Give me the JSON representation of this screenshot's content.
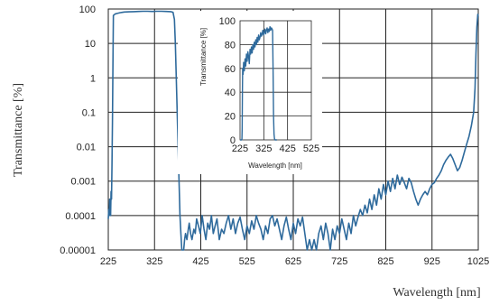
{
  "chart_data": [
    {
      "type": "line",
      "xlabel": "Wavelength [nm]",
      "ylabel": "Transmittance [%]",
      "xlim": [
        225,
        1025
      ],
      "ylim": [
        1e-05,
        100
      ],
      "yscale": "log",
      "grid": true,
      "x_ticks": [
        "225",
        "325",
        "425",
        "525",
        "625",
        "725",
        "825",
        "925",
        "1025"
      ],
      "y_ticks": [
        "100",
        "10",
        "1",
        "0.1",
        "0.01",
        "0.001",
        "0.0001",
        "0.00001"
      ],
      "color": "#2e6a9c",
      "series": [
        {
          "x": [
            225,
            226,
            227,
            228,
            229,
            230,
            231,
            232,
            233,
            234,
            235,
            236,
            240,
            245,
            250,
            255,
            260,
            270,
            280,
            290,
            300,
            310,
            320,
            330,
            340,
            350,
            360,
            365,
            368,
            370,
            372,
            374,
            376,
            378,
            380,
            382,
            384,
            386,
            388,
            390,
            392,
            395,
            398,
            400,
            403,
            406,
            410,
            413,
            416,
            420,
            424,
            428,
            432,
            436,
            440,
            444,
            448,
            452,
            456,
            460,
            465,
            470,
            475,
            480,
            485,
            490,
            495,
            500,
            505,
            510,
            515,
            520,
            525,
            530,
            535,
            540,
            545,
            550,
            555,
            560,
            565,
            570,
            575,
            580,
            585,
            590,
            595,
            600,
            605,
            610,
            615,
            620,
            625,
            630,
            635,
            640,
            645,
            650,
            655,
            660,
            665,
            670,
            675,
            680,
            685,
            690,
            695,
            700,
            705,
            710,
            715,
            720,
            725,
            730,
            735,
            740,
            745,
            750,
            755,
            760,
            765,
            770,
            775,
            780,
            785,
            790,
            795,
            800,
            805,
            810,
            815,
            820,
            825,
            830,
            835,
            840,
            845,
            850,
            855,
            860,
            865,
            870,
            875,
            880,
            885,
            890,
            895,
            900,
            905,
            910,
            915,
            920,
            925,
            930,
            935,
            940,
            945,
            950,
            955,
            960,
            965,
            970,
            975,
            980,
            985,
            990,
            995,
            1000,
            1005,
            1010,
            1015,
            1018,
            1020,
            1022,
            1024,
            1025
          ],
          "y": [
            8e-05,
            0.00015,
            0.0001,
            0.0003,
            0.0002,
            0.0001,
            0.0005,
            0.0003,
            0.003,
            0.05,
            2,
            65,
            72,
            75,
            78,
            80,
            82,
            83,
            84,
            85,
            86,
            86,
            85,
            86,
            86,
            85,
            84,
            80,
            50,
            10,
            1,
            0.1,
            0.01,
            0.001,
            0.0001,
            3e-05,
            1e-05,
            1e-05,
            1e-05,
            2e-05,
            3e-05,
            2e-05,
            4e-05,
            6e-05,
            3e-05,
            2e-05,
            4e-05,
            3e-05,
            8e-05,
            5e-05,
            3e-05,
            0.0001,
            4e-05,
            2e-05,
            6e-05,
            4e-05,
            0.0001,
            3e-05,
            5e-05,
            8e-05,
            2e-05,
            4e-05,
            3e-05,
            6e-05,
            0.0001,
            4e-05,
            8e-05,
            3e-05,
            6e-05,
            9e-05,
            4e-05,
            2e-05,
            5e-05,
            3e-05,
            7e-05,
            4e-05,
            0.0001,
            6e-05,
            4e-05,
            2e-05,
            5e-05,
            3e-05,
            8e-05,
            0.0001,
            5e-05,
            8e-05,
            4e-05,
            2e-05,
            5e-05,
            9e-05,
            4e-05,
            2e-05,
            6e-05,
            3e-05,
            8e-05,
            5e-05,
            9e-05,
            3e-05,
            1e-05,
            2e-05,
            1e-05,
            2e-05,
            1e-05,
            3e-05,
            5e-05,
            2e-05,
            6e-05,
            3e-05,
            1e-05,
            4e-05,
            2e-05,
            5e-05,
            3e-05,
            8e-05,
            4e-05,
            2e-05,
            6e-05,
            3e-05,
            0.0001,
            5e-05,
            9e-05,
            0.00015,
            0.0001,
            0.0002,
            0.00012,
            0.0003,
            0.00015,
            0.0004,
            0.0002,
            0.0006,
            0.0003,
            0.0008,
            0.0004,
            0.001,
            0.0005,
            0.0012,
            0.0006,
            0.0015,
            0.0008,
            0.0013,
            0.0009,
            0.0006,
            0.0012,
            0.0009,
            0.0005,
            0.0003,
            0.0002,
            0.0003,
            0.0004,
            0.0005,
            0.0004,
            0.0006,
            0.0008,
            0.0009,
            0.0012,
            0.0015,
            0.002,
            0.003,
            0.004,
            0.005,
            0.006,
            0.0045,
            0.003,
            0.002,
            0.0025,
            0.004,
            0.007,
            0.012,
            0.02,
            0.04,
            0.1,
            0.5,
            5,
            30,
            70,
            60
          ]
        }
      ]
    },
    {
      "type": "line",
      "xlabel": "Wavelength [nm]",
      "ylabel": "Transmittance [%]",
      "xlim": [
        225,
        525
      ],
      "ylim": [
        0,
        100
      ],
      "grid": true,
      "x_ticks": [
        "225",
        "325",
        "425",
        "525"
      ],
      "y_ticks": [
        "100",
        "80",
        "60",
        "40",
        "20",
        "0"
      ],
      "color": "#2e6a9c",
      "series": [
        {
          "x": [
            225,
            228,
            230,
            232,
            233,
            234,
            235,
            236,
            238,
            240,
            243,
            246,
            249,
            252,
            255,
            258,
            261,
            264,
            267,
            270,
            273,
            276,
            279,
            282,
            285,
            288,
            291,
            294,
            297,
            300,
            303,
            306,
            309,
            312,
            315,
            318,
            321,
            324,
            327,
            330,
            333,
            336,
            339,
            342,
            345,
            348,
            351,
            354,
            357,
            360,
            362,
            364,
            366,
            368,
            370,
            372,
            374,
            376,
            378,
            380
          ],
          "y": [
            0,
            0,
            0,
            0,
            1,
            10,
            40,
            60,
            55,
            65,
            58,
            68,
            62,
            72,
            66,
            74,
            70,
            64,
            76,
            72,
            78,
            73,
            80,
            76,
            82,
            78,
            84,
            80,
            86,
            82,
            88,
            84,
            86,
            90,
            87,
            89,
            92,
            88,
            90,
            93,
            89,
            92,
            94,
            90,
            93,
            91,
            95,
            92,
            94,
            93,
            92,
            60,
            20,
            5,
            1,
            0,
            0,
            0,
            0,
            0
          ]
        }
      ]
    }
  ]
}
